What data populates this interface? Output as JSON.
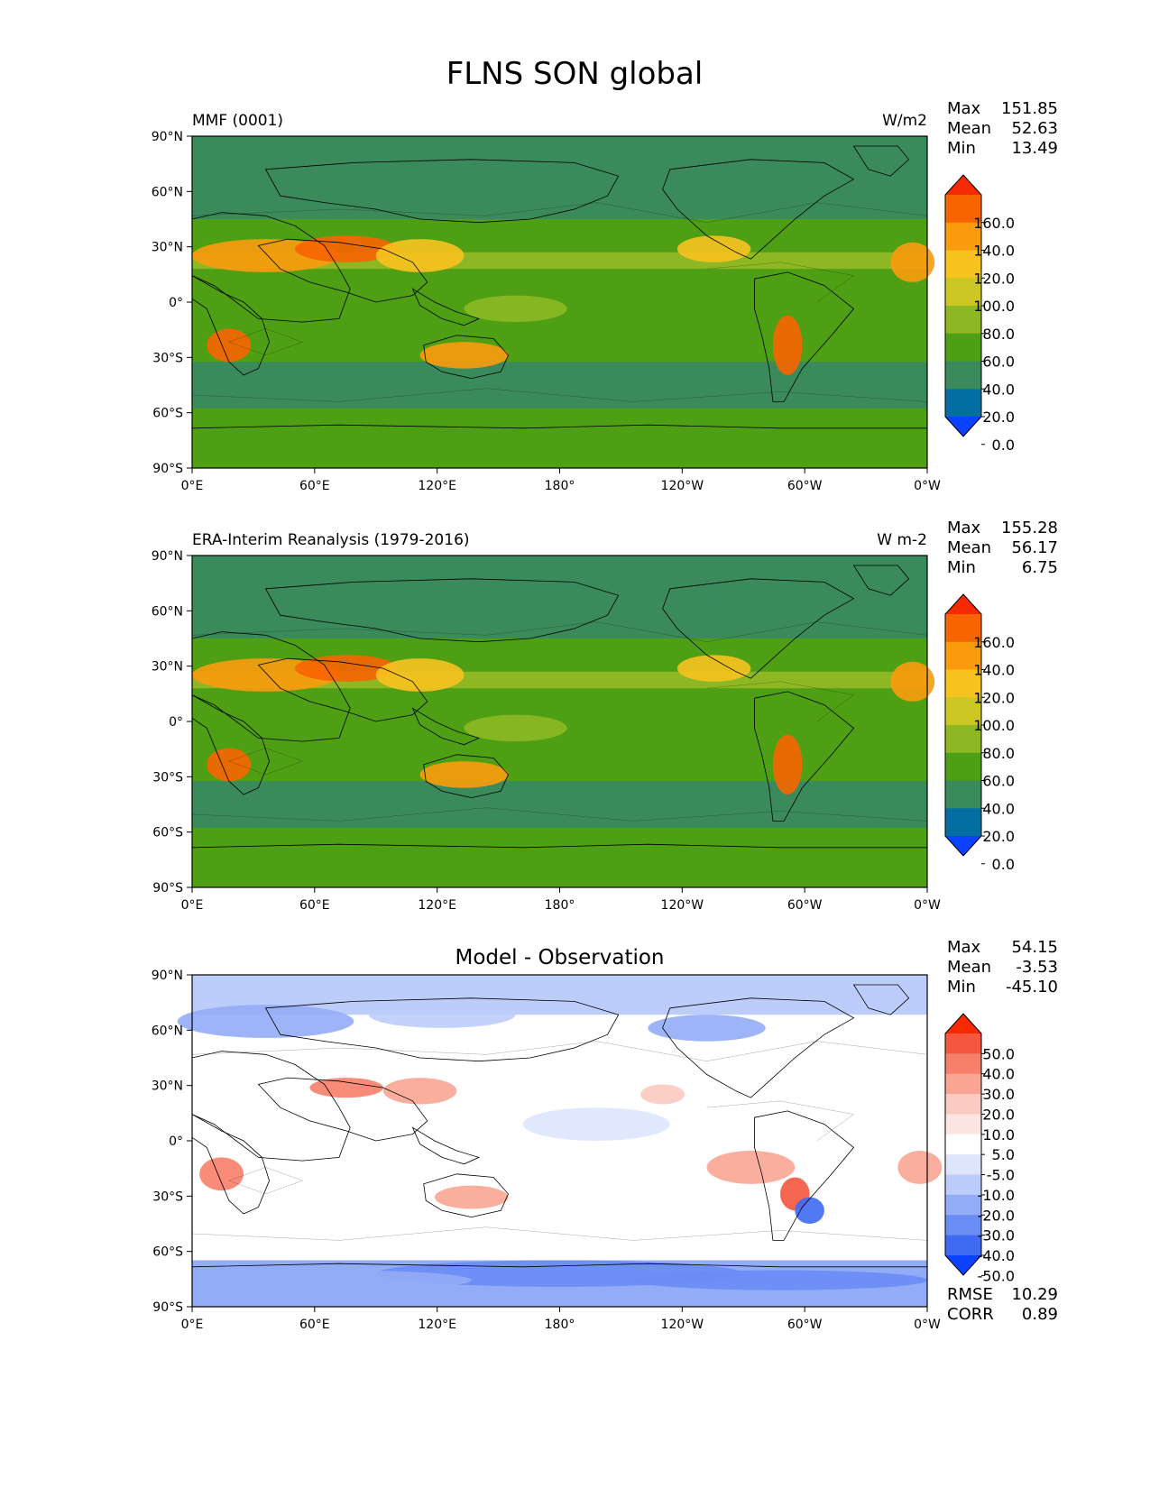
{
  "title": "FLNS SON global",
  "axes": {
    "lat_ticks": [
      "90°N",
      "60°N",
      "30°N",
      "0°",
      "30°S",
      "60°S",
      "90°S"
    ],
    "lon_ticks": [
      "0°E",
      "60°E",
      "120°E",
      "180°",
      "120°W",
      "60°W",
      "0°W"
    ]
  },
  "panels": [
    {
      "id": "model",
      "left_title": "MMF (0001)",
      "center_title": "",
      "units": "W/m2",
      "stats": [
        {
          "label": "Max",
          "value": "151.85"
        },
        {
          "label": "Mean",
          "value": "52.63"
        },
        {
          "label": "Min",
          "value": "13.49"
        }
      ],
      "colorbar": {
        "labels": [
          "160.0",
          "140.0",
          "120.0",
          "100.0",
          "80.0",
          "60.0",
          "40.0",
          "20.0",
          "0.0"
        ],
        "colors": [
          "#f52a00",
          "#f86400",
          "#fa9b0d",
          "#f8c21f",
          "#cbc624",
          "#8db823",
          "#4e9f14",
          "#3a8a5c",
          "#046ea2",
          "#0b42ff"
        ]
      },
      "footer_stats": []
    },
    {
      "id": "obs",
      "left_title": "ERA-Interim Reanalysis (1979-2016)",
      "center_title": "",
      "units": "W m-2",
      "stats": [
        {
          "label": "Max",
          "value": "155.28"
        },
        {
          "label": "Mean",
          "value": "56.17"
        },
        {
          "label": "Min",
          "value": "6.75"
        }
      ],
      "colorbar": {
        "labels": [
          "160.0",
          "140.0",
          "120.0",
          "100.0",
          "80.0",
          "60.0",
          "40.0",
          "20.0",
          "0.0"
        ],
        "colors": [
          "#f52a00",
          "#f86400",
          "#fa9b0d",
          "#f8c21f",
          "#cbc624",
          "#8db823",
          "#4e9f14",
          "#3a8a5c",
          "#046ea2",
          "#0b42ff"
        ]
      },
      "footer_stats": []
    },
    {
      "id": "diff",
      "left_title": "",
      "center_title": "Model - Observation",
      "units": "",
      "stats": [
        {
          "label": "Max",
          "value": "54.15"
        },
        {
          "label": "Mean",
          "value": "-3.53"
        },
        {
          "label": "Min",
          "value": "-45.10"
        }
      ],
      "colorbar": {
        "labels": [
          "50.0",
          "40.0",
          "30.0",
          "20.0",
          "10.0",
          "5.0",
          "-5.0",
          "-10.0",
          "-20.0",
          "-30.0",
          "-40.0",
          "-50.0"
        ],
        "colors": [
          "#f52a00",
          "#f5573f",
          "#f7806a",
          "#f8a593",
          "#fbcac0",
          "#fde6e2",
          "#ffffff",
          "#dde6fd",
          "#bccdfb",
          "#93acf7",
          "#6a8cf5",
          "#3f6af4",
          "#0b42ff"
        ]
      },
      "footer_stats": [
        {
          "label": "RMSE",
          "value": "10.29"
        },
        {
          "label": "CORR",
          "value": "0.89"
        }
      ]
    }
  ]
}
